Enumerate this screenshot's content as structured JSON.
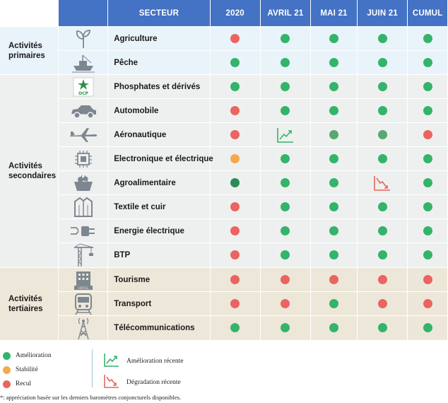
{
  "header": {
    "secteur": "SECTEUR",
    "columns": [
      "2020",
      "AVRIL 21",
      "MAI 21",
      "JUIN 21",
      "CUMUL"
    ]
  },
  "groups": [
    {
      "label_l1": "Activités",
      "label_l2": "primaires"
    },
    {
      "label_l1": "Activités",
      "label_l2": "secondaires"
    },
    {
      "label_l1": "Activités",
      "label_l2": "tertiaires"
    }
  ],
  "colors": {
    "amelioration": "#34b36b",
    "stabilite": "#f6a84d",
    "recul": "#ea6461",
    "amelioration_dark": "#2e8b57",
    "amelioration_muted": "#58a870",
    "header": "#4472c4"
  },
  "chart_data": {
    "type": "table",
    "columns": [
      "2020",
      "AVRIL 21",
      "MAI 21",
      "JUIN 21",
      "CUMUL"
    ],
    "rows": [
      {
        "sector": "Agriculture",
        "group": "primaires",
        "icon": "plant-icon",
        "values": [
          "recul",
          "amelioration",
          "amelioration",
          "amelioration",
          "amelioration"
        ]
      },
      {
        "sector": "Pêche",
        "group": "primaires",
        "icon": "fishing-boat-icon",
        "values": [
          "amelioration",
          "amelioration",
          "amelioration",
          "amelioration",
          "amelioration"
        ]
      },
      {
        "sector": "Phosphates et dérivés",
        "group": "secondaires",
        "icon": "ocp-logo-icon",
        "values": [
          "amelioration",
          "amelioration",
          "amelioration",
          "amelioration",
          "amelioration"
        ]
      },
      {
        "sector": "Automobile",
        "group": "secondaires",
        "icon": "car-icon",
        "values": [
          "recul",
          "amelioration",
          "amelioration",
          "amelioration",
          "amelioration"
        ]
      },
      {
        "sector": "Aéronautique",
        "group": "secondaires",
        "icon": "airplane-icon",
        "values": [
          "recul",
          "amelioration_recente",
          "amelioration_muted",
          "amelioration_muted",
          "recul"
        ]
      },
      {
        "sector": "Electronique et électrique",
        "group": "secondaires",
        "icon": "chip-icon",
        "values": [
          "stabilite",
          "amelioration",
          "amelioration",
          "amelioration",
          "amelioration"
        ]
      },
      {
        "sector": "Agroalimentaire",
        "group": "secondaires",
        "icon": "basket-icon",
        "values": [
          "amelioration_dark",
          "amelioration",
          "amelioration",
          "degradation_recente",
          "amelioration"
        ]
      },
      {
        "sector": "Textile et cuir",
        "group": "secondaires",
        "icon": "jacket-icon",
        "values": [
          "recul",
          "amelioration",
          "amelioration",
          "amelioration",
          "amelioration"
        ]
      },
      {
        "sector": "Energie électrique",
        "group": "secondaires",
        "icon": "plug-icon",
        "values": [
          "recul",
          "amelioration",
          "amelioration",
          "amelioration",
          "amelioration"
        ]
      },
      {
        "sector": "BTP",
        "group": "secondaires",
        "icon": "crane-icon",
        "values": [
          "recul",
          "amelioration",
          "amelioration",
          "amelioration",
          "amelioration"
        ]
      },
      {
        "sector": "Tourisme",
        "group": "tertiaires",
        "icon": "hotel-icon",
        "values": [
          "recul",
          "recul",
          "recul",
          "recul",
          "recul"
        ]
      },
      {
        "sector": "Transport",
        "group": "tertiaires",
        "icon": "train-icon",
        "values": [
          "recul",
          "recul",
          "amelioration",
          "recul",
          "recul"
        ]
      },
      {
        "sector": "Télécommunications",
        "group": "tertiaires",
        "icon": "antenna-icon",
        "values": [
          "amelioration",
          "amelioration",
          "amelioration",
          "amelioration",
          "amelioration"
        ]
      }
    ]
  },
  "legend": {
    "amelioration": "Amélioration",
    "stabilite": "Stabilité",
    "recul": "Recul",
    "amelioration_recente": "Amélioration récente",
    "degradation_recente": "Dégradation récente"
  },
  "footnote": "*: appréciation basée sur les derniers baromètres conjoncturels disponibles."
}
